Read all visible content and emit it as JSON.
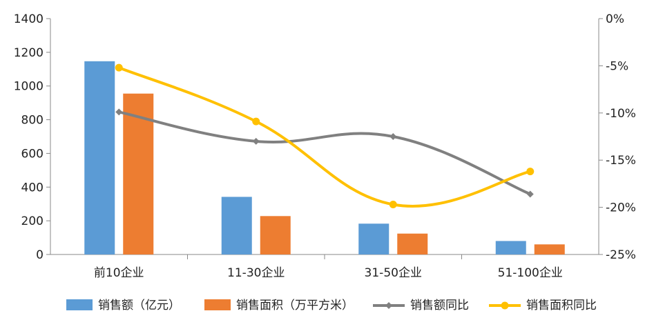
{
  "chart_data": {
    "type": "bar",
    "categories": [
      "前10企业",
      "11-30企业",
      "31-50企业",
      "51-100企业"
    ],
    "series": [
      {
        "name": "销售额（亿元）",
        "kind": "bar",
        "axis": "left",
        "color": "#5B9BD5",
        "values": [
          1147,
          342,
          183,
          80
        ]
      },
      {
        "name": "销售面积（万平方米）",
        "kind": "bar",
        "axis": "left",
        "color": "#ED7D31",
        "values": [
          955,
          228,
          124,
          60
        ]
      },
      {
        "name": "销售额同比",
        "kind": "line",
        "axis": "right",
        "color": "#808080",
        "values": [
          -9.9,
          -13.0,
          -12.5,
          -18.6
        ]
      },
      {
        "name": "销售面积同比",
        "kind": "line",
        "axis": "right",
        "color": "#FFC000",
        "values": [
          -5.2,
          -10.9,
          -19.7,
          -16.2
        ]
      }
    ],
    "left_axis": {
      "min": 0,
      "max": 1400,
      "step": 200,
      "ticks": [
        "0",
        "200",
        "400",
        "600",
        "800",
        "1000",
        "1200",
        "1400"
      ]
    },
    "right_axis": {
      "min": -25,
      "max": 0,
      "step": 5,
      "ticks": [
        "-25%",
        "-20%",
        "-15%",
        "-10%",
        "-5%",
        "0%"
      ]
    },
    "legend_position": "bottom",
    "grid": false
  }
}
